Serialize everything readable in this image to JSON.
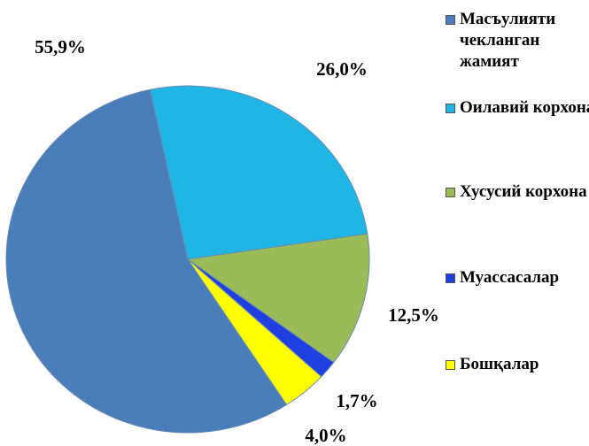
{
  "chart_data": {
    "type": "pie",
    "categories": [
      "Масъулияти чекланган жамият",
      "Оилавий корхона",
      "Хусусий корхона",
      "Муассасалар",
      "Бошқалар"
    ],
    "values": [
      55.9,
      26.0,
      12.5,
      1.7,
      4.0
    ],
    "value_labels": [
      "55,9%",
      "26,0%",
      "12,5%",
      "1,7%",
      "4,0%"
    ],
    "colors": [
      "#4a7ebb",
      "#1fb6e6",
      "#9bbb59",
      "#1f3fe0",
      "#ffff00"
    ],
    "legend": "right"
  }
}
